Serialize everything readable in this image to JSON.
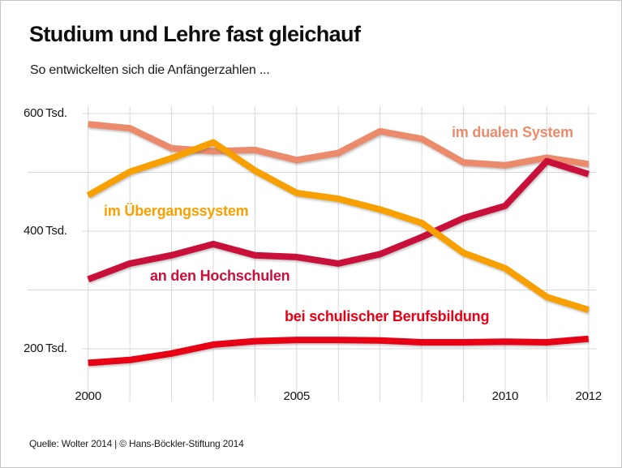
{
  "header": {
    "title": "Studium und Lehre fast gleichauf",
    "subtitle": "So entwickelten sich die Anfängerzahlen ..."
  },
  "chart_data": {
    "type": "line",
    "x": [
      2000,
      2001,
      2002,
      2003,
      2004,
      2005,
      2006,
      2007,
      2008,
      2009,
      2010,
      2011,
      2012
    ],
    "series": [
      {
        "name": "im dualen System",
        "color": "#EC8B6B",
        "values": [
          582,
          575,
          541,
          536,
          538,
          521,
          533,
          570,
          557,
          517,
          512,
          525,
          514
        ]
      },
      {
        "name": "an den Hochschulen",
        "color": "#C9103B",
        "values": [
          318,
          345,
          359,
          378,
          359,
          356,
          345,
          361,
          390,
          422,
          443,
          519,
          497
        ]
      },
      {
        "name": "im Übergangssystem",
        "color": "#F7A000",
        "values": [
          461,
          501,
          524,
          551,
          503,
          465,
          455,
          437,
          414,
          363,
          337,
          288,
          266
        ]
      },
      {
        "name": "bei schulischer Berufsbildung",
        "color": "#E80014",
        "values": [
          176,
          181,
          192,
          207,
          213,
          215,
          215,
          214,
          211,
          211,
          212,
          211,
          217
        ]
      }
    ],
    "unit": "Tsd.",
    "ylim": [
      150,
      620
    ],
    "grid": true,
    "grid_y_values": [
      200,
      300,
      400,
      500,
      600
    ],
    "y_tick_labels": [
      "200 Tsd.",
      "400 Tsd.",
      "600 Tsd."
    ],
    "y_tick_values": [
      200,
      400,
      600
    ],
    "x_tick_labels": [
      "2000",
      "2005",
      "2010",
      "2012"
    ],
    "x_tick_values": [
      2000,
      2005,
      2010,
      2012
    ],
    "legend_position": "inline annotations on chart"
  },
  "footer": {
    "source": "Quelle: Wolter 2014 | © Hans-Böckler-Stiftung 2014"
  }
}
